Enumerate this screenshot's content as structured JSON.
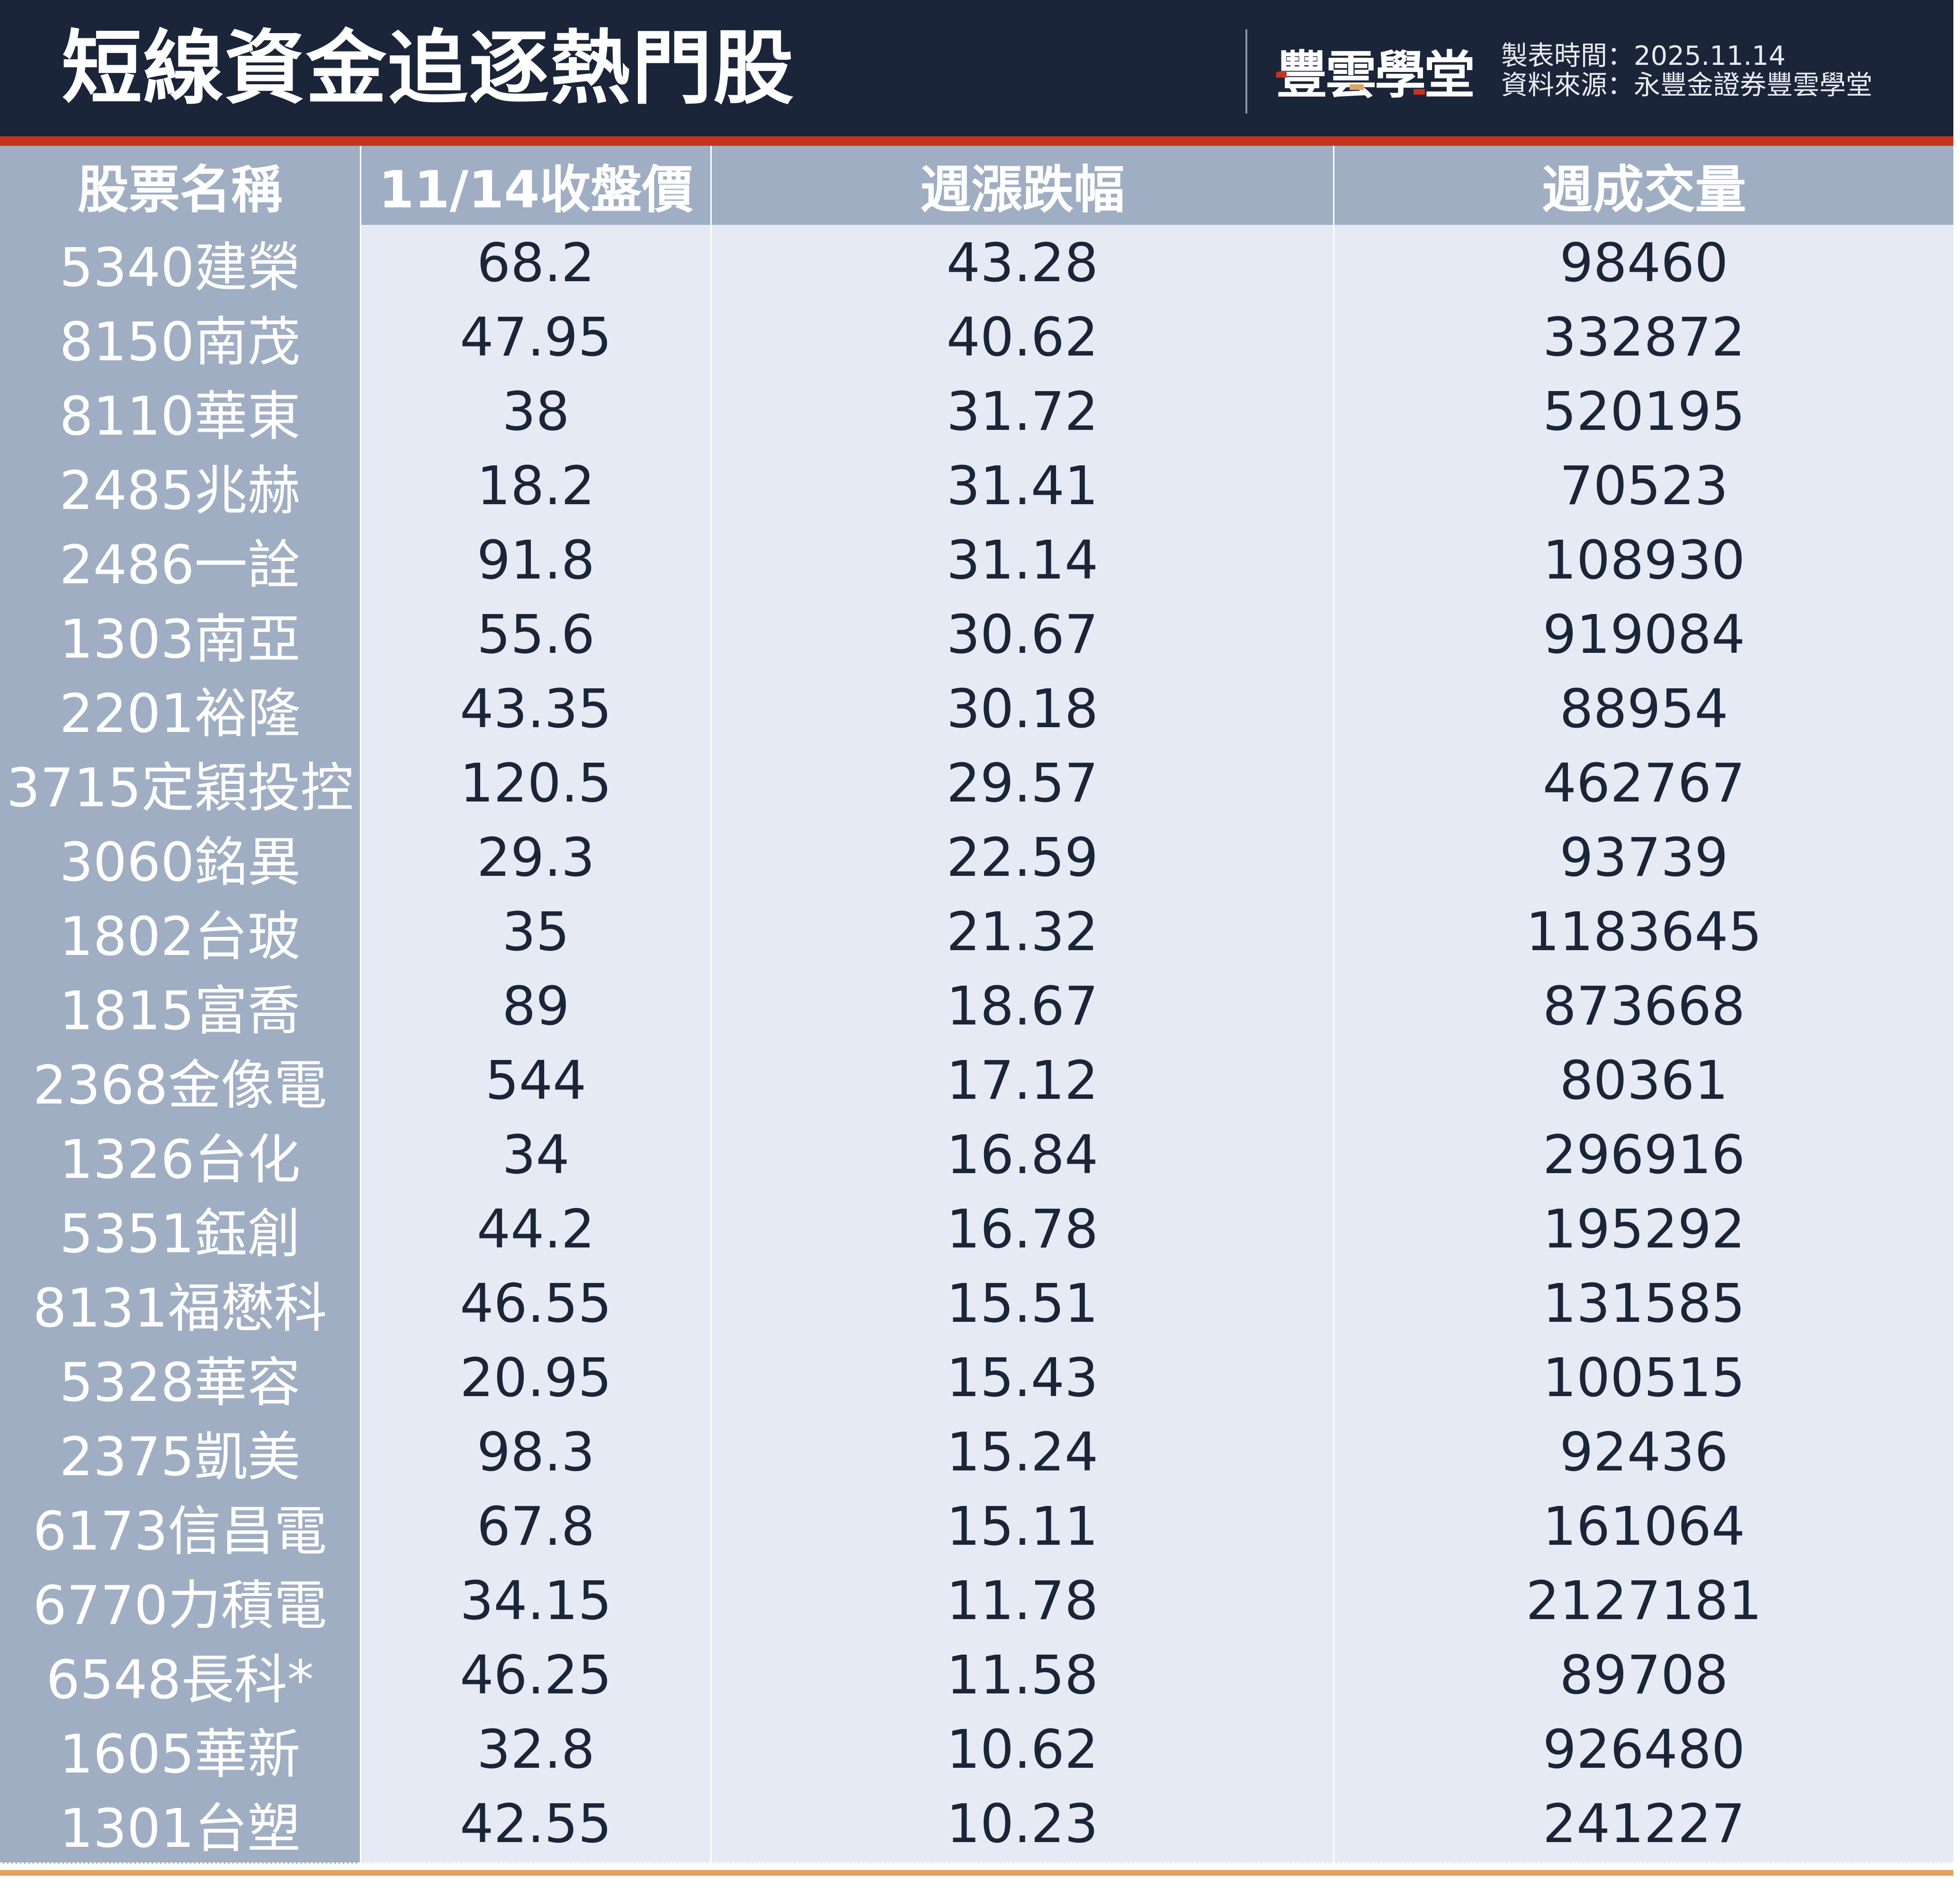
{
  "header": {
    "title": "短線資金追逐熱門股",
    "logo_text": "豐雲學堂",
    "made_time": "製表時間：2025.11.14",
    "source": "資料來源：永豐金證券豐雲學堂"
  },
  "colors": {
    "header_bg": "#1b2539",
    "accent_red": "#c4341f",
    "header_row_bg": "#a0aec4",
    "data_bg": "#e6eaf4",
    "bottom_line": "#e0a060"
  },
  "table": {
    "columns": [
      "股票名稱",
      "11/14收盤價",
      "週漲跌幅",
      "週成交量"
    ],
    "rows": [
      [
        "5340建榮",
        "68.2",
        "43.28",
        "98460"
      ],
      [
        "8150南茂",
        "47.95",
        "40.62",
        "332872"
      ],
      [
        "8110華東",
        "38",
        "31.72",
        "520195"
      ],
      [
        "2485兆赫",
        "18.2",
        "31.41",
        "70523"
      ],
      [
        "2486一詮",
        "91.8",
        "31.14",
        "108930"
      ],
      [
        "1303南亞",
        "55.6",
        "30.67",
        "919084"
      ],
      [
        "2201裕隆",
        "43.35",
        "30.18",
        "88954"
      ],
      [
        "3715定穎投控",
        "120.5",
        "29.57",
        "462767"
      ],
      [
        "3060銘異",
        "29.3",
        "22.59",
        "93739"
      ],
      [
        "1802台玻",
        "35",
        "21.32",
        "1183645"
      ],
      [
        "1815富喬",
        "89",
        "18.67",
        "873668"
      ],
      [
        "2368金像電",
        "544",
        "17.12",
        "80361"
      ],
      [
        "1326台化",
        "34",
        "16.84",
        "296916"
      ],
      [
        "5351鈺創",
        "44.2",
        "16.78",
        "195292"
      ],
      [
        "8131福懋科",
        "46.55",
        "15.51",
        "131585"
      ],
      [
        "5328華容",
        "20.95",
        "15.43",
        "100515"
      ],
      [
        "2375凱美",
        "98.3",
        "15.24",
        "92436"
      ],
      [
        "6173信昌電",
        "67.8",
        "15.11",
        "161064"
      ],
      [
        "6770力積電",
        "34.15",
        "11.78",
        "2127181"
      ],
      [
        "6548長科*",
        "46.25",
        "11.58",
        "89708"
      ],
      [
        "1605華新",
        "32.8",
        "10.62",
        "926480"
      ],
      [
        "1301台塑",
        "42.55",
        "10.23",
        "241227"
      ]
    ]
  }
}
